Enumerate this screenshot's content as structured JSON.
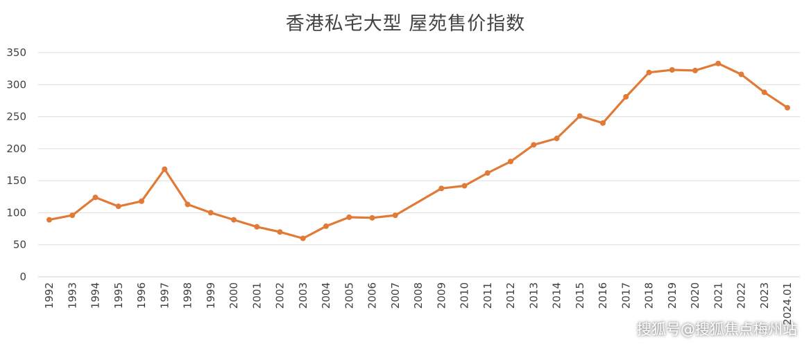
{
  "chart_data": {
    "type": "line",
    "title": "香港私宅大型 屋苑售价指数",
    "xlabel": "",
    "ylabel": "",
    "ylim": [
      0,
      350
    ],
    "yticks": [
      0,
      50,
      100,
      150,
      200,
      250,
      300,
      350
    ],
    "grid": "horizontal",
    "color": "#E07A36",
    "categories": [
      "1992",
      "1993",
      "1994",
      "1995",
      "1996",
      "1997",
      "1998",
      "1999",
      "2000",
      "2001",
      "2002",
      "2003",
      "2004",
      "2005",
      "2006",
      "2007",
      "2008",
      "2009",
      "2010",
      "2011",
      "2012",
      "2013",
      "2014",
      "2015",
      "2016",
      "2017",
      "2018",
      "2019",
      "2020",
      "2021",
      "2022",
      "2023",
      "2024.01"
    ],
    "values": [
      89,
      96,
      124,
      110,
      118,
      168,
      113,
      100,
      89,
      78,
      70,
      60,
      79,
      93,
      92,
      96,
      null,
      138,
      142,
      162,
      180,
      206,
      216,
      251,
      240,
      281,
      319,
      323,
      322,
      333,
      316,
      288,
      264
    ]
  },
  "watermark": "搜狐号@搜狐焦点梅州站"
}
